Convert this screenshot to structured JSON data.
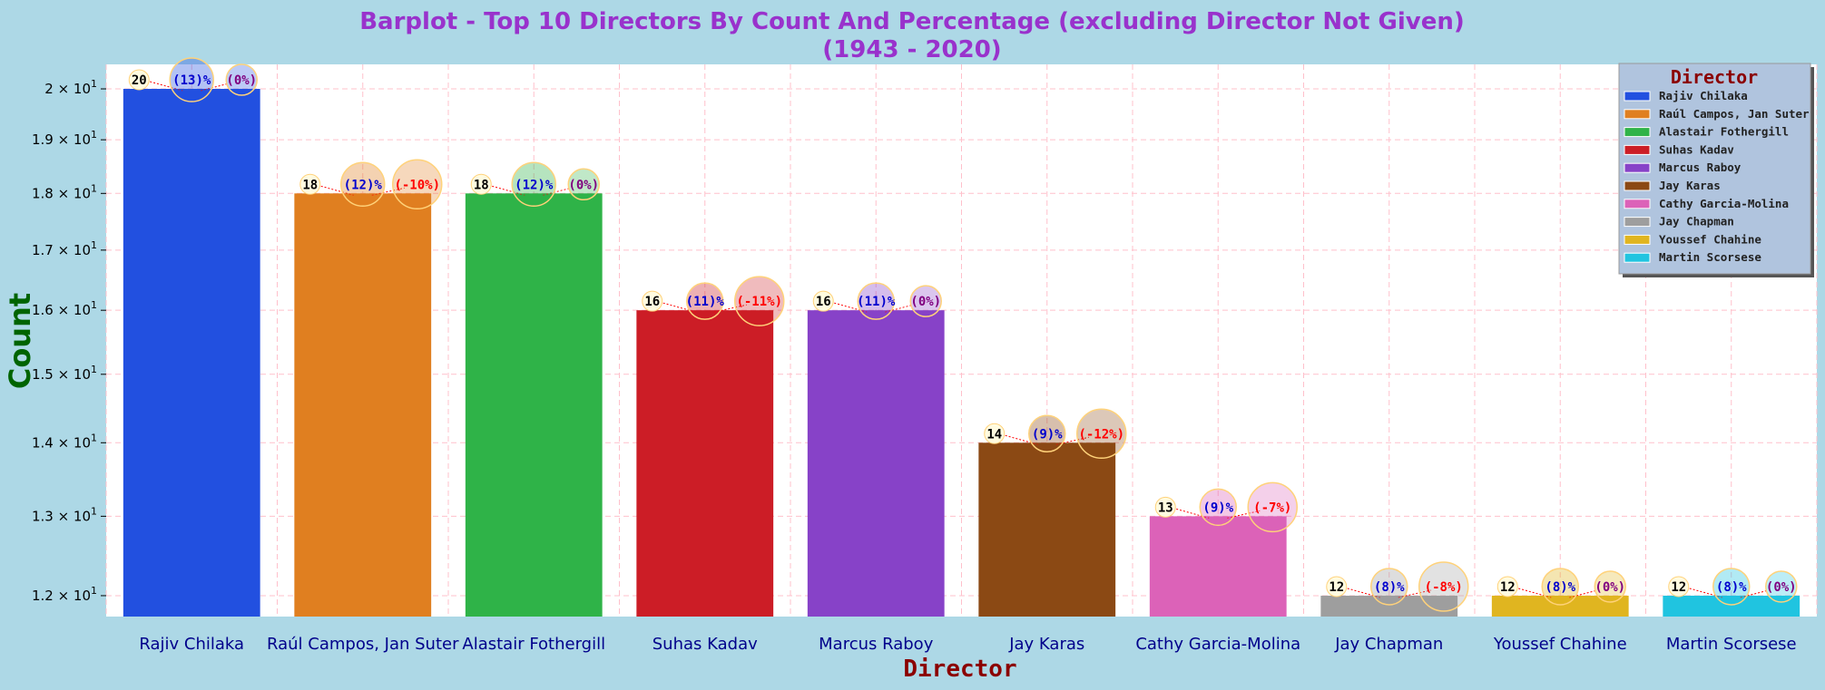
{
  "chart_data": {
    "type": "bar",
    "title": "Barplot - Top 10 Directors By Count And Percentage (excluding Director Not Given)",
    "subtitle": "(1943 - 2020)",
    "xlabel": "Director",
    "ylabel": "Count",
    "yscale": "log",
    "ylim": [
      11.75,
      20.5
    ],
    "grid": true,
    "legend_title": "Director",
    "legend_position": "top-right",
    "categories": [
      "Rajiv Chilaka",
      "Raúl Campos, Jan Suter",
      "Alastair Fothergill",
      "Suhas Kadav",
      "Marcus Raboy",
      "Jay Karas",
      "Cathy Garcia-Molina",
      "Jay Chapman",
      "Youssef Chahine",
      "Martin Scorsese"
    ],
    "values": [
      20,
      18,
      18,
      16,
      16,
      14,
      13,
      12,
      12,
      12
    ],
    "count_labels": [
      "20",
      "18",
      "18",
      "16",
      "16",
      "14",
      "13",
      "12",
      "12",
      "12"
    ],
    "percent_labels": [
      "(13)%",
      "(12)%",
      "(12)%",
      "(11)%",
      "(11)%",
      "(9)%",
      "(9)%",
      "(8)%",
      "(8)%",
      "(8)%"
    ],
    "change_labels": [
      "(0%)",
      "(-10%)",
      "(0%)",
      "(-11%)",
      "(0%)",
      "(-12%)",
      "(-7%)",
      "(-8%)",
      "(0%)",
      "(0%)"
    ],
    "colors": [
      "#2250e0",
      "#e07f20",
      "#2fb348",
      "#cc1d26",
      "#8742c8",
      "#8b4914",
      "#dc62b8",
      "#9e9e9e",
      "#e0b520",
      "#20c4e0"
    ],
    "yticks": [
      {
        "value": 12,
        "base": "1.2",
        "exp": "1"
      },
      {
        "value": 13,
        "base": "1.3",
        "exp": "1"
      },
      {
        "value": 14,
        "base": "1.4",
        "exp": "1"
      },
      {
        "value": 15,
        "base": "1.5",
        "exp": "1"
      },
      {
        "value": 16,
        "base": "1.6",
        "exp": "1"
      },
      {
        "value": 17,
        "base": "1.7",
        "exp": "1"
      },
      {
        "value": 18,
        "base": "1.8",
        "exp": "1"
      },
      {
        "value": 19,
        "base": "1.9",
        "exp": "1"
      },
      {
        "value": 20,
        "base": "2",
        "exp": "1"
      }
    ],
    "colors_meta": {
      "background": "#add8e6",
      "plot_background": "#ffffff",
      "grid": "#ffc0cb",
      "title": "#9932cc",
      "ylabel": "#006400",
      "xlabel": "#8b0000",
      "tick_label": "#00008b",
      "count_text": "#000000",
      "percent_text": "#0000cd",
      "change_zero": "#800080",
      "change_negative": "#ff0000",
      "legend_bg": "#b0c4de"
    }
  }
}
